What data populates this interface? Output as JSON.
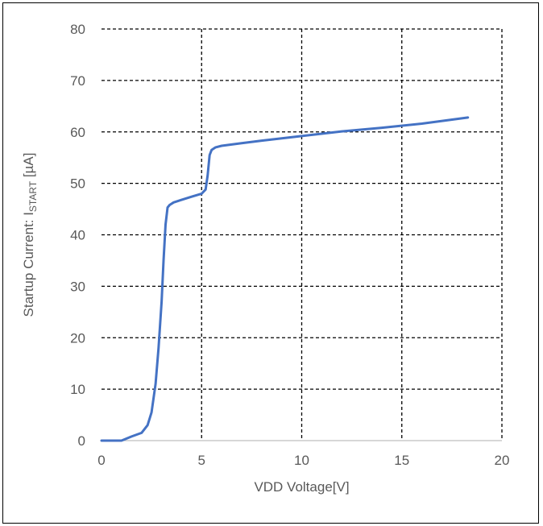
{
  "chart_data": {
    "type": "line",
    "title": "",
    "xlabel": "VDD Voltage[V]",
    "ylabel": {
      "prefix": "Startup Current: I",
      "subscript": "START",
      "suffix": " [µA]"
    },
    "xlim": [
      0,
      20
    ],
    "ylim": [
      0,
      80
    ],
    "x_ticks": [
      0,
      5,
      10,
      15,
      20
    ],
    "y_ticks": [
      0,
      10,
      20,
      30,
      40,
      50,
      60,
      70,
      80
    ],
    "grid": true,
    "grid_style": "dashed",
    "series": [
      {
        "color": "#4472C4",
        "x": [
          0,
          1.0,
          1.5,
          2.0,
          2.3,
          2.5,
          2.7,
          2.85,
          3.0,
          3.1,
          3.2,
          3.3,
          3.4,
          3.6,
          4.0,
          4.5,
          5.0,
          5.2,
          5.3,
          5.4,
          5.5,
          5.7,
          6.0,
          7.0,
          8.0,
          10.0,
          12.0,
          14.0,
          16.0,
          18.3
        ],
        "y": [
          0,
          0,
          0.8,
          1.5,
          3.0,
          5.5,
          11.0,
          18.0,
          27.0,
          35.0,
          42.0,
          45.3,
          45.8,
          46.3,
          46.8,
          47.4,
          48.0,
          48.8,
          51.5,
          55.5,
          56.5,
          57.0,
          57.3,
          57.8,
          58.3,
          59.2,
          60.1,
          60.8,
          61.6,
          62.8
        ]
      }
    ]
  }
}
